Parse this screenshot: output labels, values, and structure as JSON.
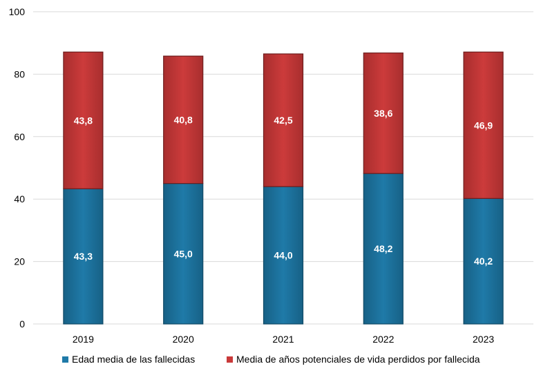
{
  "chart_data": {
    "type": "bar",
    "stacked": true,
    "categories": [
      "2019",
      "2020",
      "2021",
      "2022",
      "2023"
    ],
    "series": [
      {
        "name": "Edad media de las fallecidas",
        "color": "#1F7AA8",
        "values": [
          43.3,
          45.0,
          44.0,
          48.2,
          40.2
        ],
        "labels": [
          "43,3",
          "45,0",
          "44,0",
          "48,2",
          "40,2"
        ]
      },
      {
        "name": "Media de años potenciales de vida perdidos por fallecida",
        "color": "#C93A3A",
        "values": [
          43.8,
          40.8,
          42.5,
          38.6,
          46.9
        ],
        "labels": [
          "43,8",
          "40,8",
          "42,5",
          "38,6",
          "46,9"
        ]
      }
    ],
    "yticks": [
      "0",
      "20",
      "40",
      "60",
      "80",
      "100"
    ],
    "ylim": [
      0,
      100
    ],
    "grid": true,
    "legend_position": "bottom"
  }
}
